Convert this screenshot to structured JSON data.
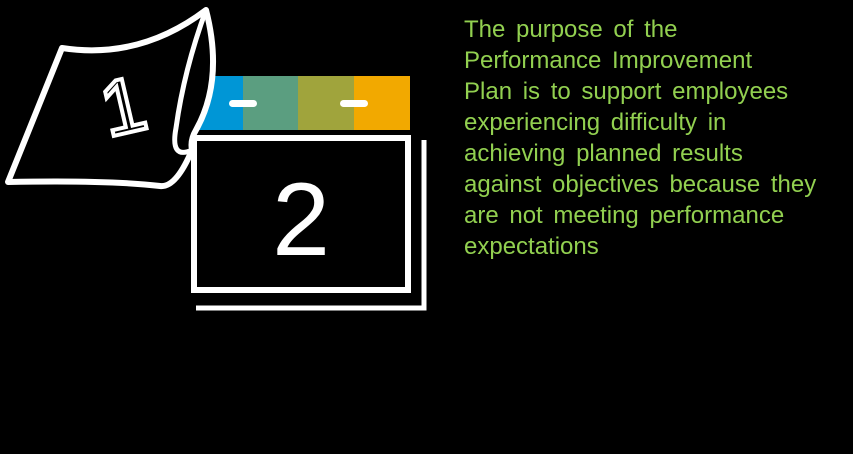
{
  "graphic": {
    "page_number": "1",
    "calendar_number": "2",
    "tab_colors": [
      "#0096d6",
      "#5b9e80",
      "#a0a43c",
      "#f2a900"
    ],
    "line_color": "#ffffff"
  },
  "text": {
    "color": "#92d050",
    "lines": [
      "The  purpose of the",
      "Performance  Improvement",
      "Plan  is  to  support  employees",
      "experiencing difficulty  in",
      "achieving planned results",
      "against objectives because they",
      "are not meeting performance",
      "expectations"
    ]
  }
}
